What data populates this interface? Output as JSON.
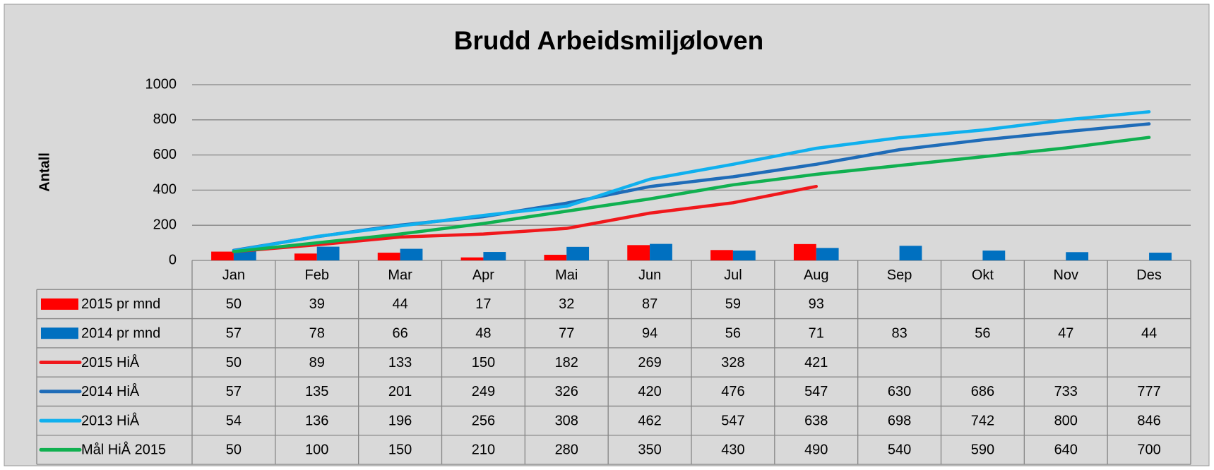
{
  "chart_data": {
    "type": "combo",
    "title": "Brudd Arbeidsmiljøloven",
    "y_label": "Antall",
    "categories": [
      "Jan",
      "Feb",
      "Mar",
      "Apr",
      "Mai",
      "Jun",
      "Jul",
      "Aug",
      "Sep",
      "Okt",
      "Nov",
      "Des"
    ],
    "ylim": [
      0,
      1000
    ],
    "yticks": [
      0,
      200,
      400,
      600,
      800,
      1000
    ],
    "grid": true,
    "series": [
      {
        "name": "2015 pr mnd",
        "type": "bar",
        "color": "#ff0000",
        "values": [
          50,
          39,
          44,
          17,
          32,
          87,
          59,
          93,
          null,
          null,
          null,
          null
        ]
      },
      {
        "name": "2014 pr mnd",
        "type": "bar",
        "color": "#0070c0",
        "values": [
          57,
          78,
          66,
          48,
          77,
          94,
          56,
          71,
          83,
          56,
          47,
          44
        ]
      },
      {
        "name": "2015 HiÅ",
        "type": "line",
        "color": "#f0181c",
        "values": [
          50,
          89,
          133,
          150,
          182,
          269,
          328,
          421,
          null,
          null,
          null,
          null
        ]
      },
      {
        "name": "2014 HiÅ",
        "type": "line",
        "color": "#1f6cb8",
        "values": [
          57,
          135,
          201,
          249,
          326,
          420,
          476,
          547,
          630,
          686,
          733,
          777
        ]
      },
      {
        "name": "2013 HiÅ",
        "type": "line",
        "color": "#10b0ee",
        "values": [
          54,
          136,
          196,
          256,
          308,
          462,
          547,
          638,
          698,
          742,
          800,
          846
        ]
      },
      {
        "name": "Mål HiÅ 2015",
        "type": "line",
        "color": "#10b050",
        "values": [
          50,
          100,
          150,
          210,
          280,
          350,
          430,
          490,
          540,
          590,
          640,
          700
        ]
      }
    ]
  }
}
